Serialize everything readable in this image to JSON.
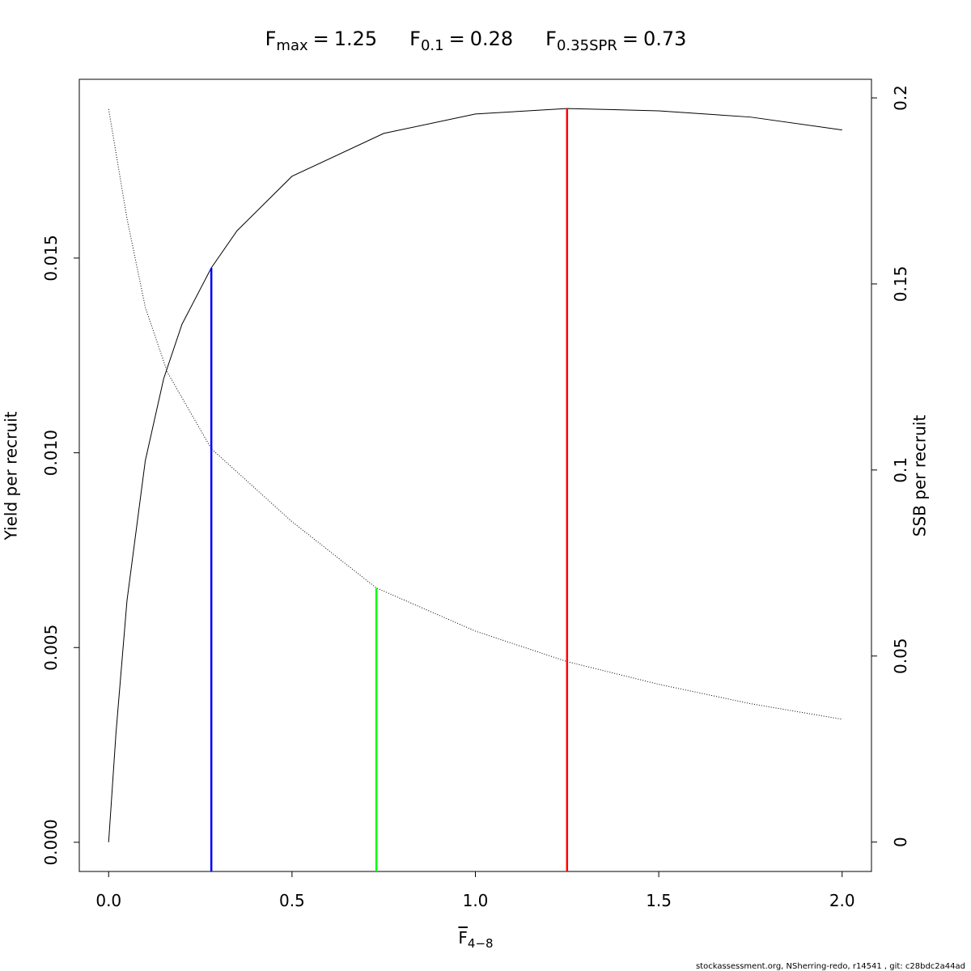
{
  "chart_data": {
    "type": "line",
    "reference_lines": [
      {
        "symbol": "F",
        "subscript": "max",
        "relation": "=",
        "x": 1.25,
        "top": 0.01884,
        "axis": "y",
        "color": "#ff0000"
      },
      {
        "symbol": "F",
        "subscript": "0.1",
        "relation": "=",
        "x": 0.28,
        "top": 0.01475,
        "axis": "y",
        "color": "#0000ff"
      },
      {
        "symbol": "F",
        "subscript": "0.35SPR",
        "relation": "=",
        "x": 0.73,
        "top": 0.0683,
        "axis": "y2",
        "color": "#00ff00"
      }
    ],
    "xlabel": "F",
    "xlabel_subscript": "4−8",
    "ylabel": "Yield per recruit",
    "y2label": "SSB per recruit",
    "series": [
      {
        "name": "Yield per recruit",
        "color": "#000000",
        "line_style": "solid",
        "axis": "y",
        "x": [
          0,
          0.02,
          0.05,
          0.1,
          0.15,
          0.2,
          0.28,
          0.35,
          0.5,
          0.75,
          1.0,
          1.25,
          1.5,
          1.75,
          2.0
        ],
        "values": [
          0,
          0.0028,
          0.0062,
          0.0098,
          0.0119,
          0.0133,
          0.01475,
          0.0157,
          0.0171,
          0.0182,
          0.0187,
          0.01884,
          0.01878,
          0.01862,
          0.01829
        ]
      },
      {
        "name": "SSB per recruit",
        "color": "#000000",
        "line_style": "dotted",
        "axis": "y2",
        "x": [
          0,
          0.05,
          0.1,
          0.16,
          0.28,
          0.5,
          0.73,
          1.0,
          1.25,
          1.5,
          1.75,
          2.0
        ],
        "values": [
          0.197,
          0.1676,
          0.1437,
          0.1263,
          0.1057,
          0.0861,
          0.0683,
          0.0567,
          0.0485,
          0.0424,
          0.0372,
          0.033
        ]
      }
    ],
    "xlim": [
      -0.08,
      2.08
    ],
    "xticks": [
      {
        "value": 0,
        "label": "0.0"
      },
      0.5,
      {
        "value": 1,
        "label": "1.0"
      },
      1.5,
      {
        "value": 2,
        "label": "2.0"
      }
    ],
    "ylim": [
      -0.00075,
      0.01959
    ],
    "yticks": [
      {
        "value": 0,
        "label": "0.000"
      },
      0.005,
      {
        "value": 0.01,
        "label": "0.010"
      },
      0.015
    ],
    "y2lim": [
      -0.0079,
      0.205
    ],
    "y2ticks": [
      0,
      0.05,
      0.1,
      0.15,
      0.2
    ],
    "grid": false,
    "footer": "stockassessment.org, NSherring-redo, r14541 , git: c28bdc2a44ad"
  }
}
